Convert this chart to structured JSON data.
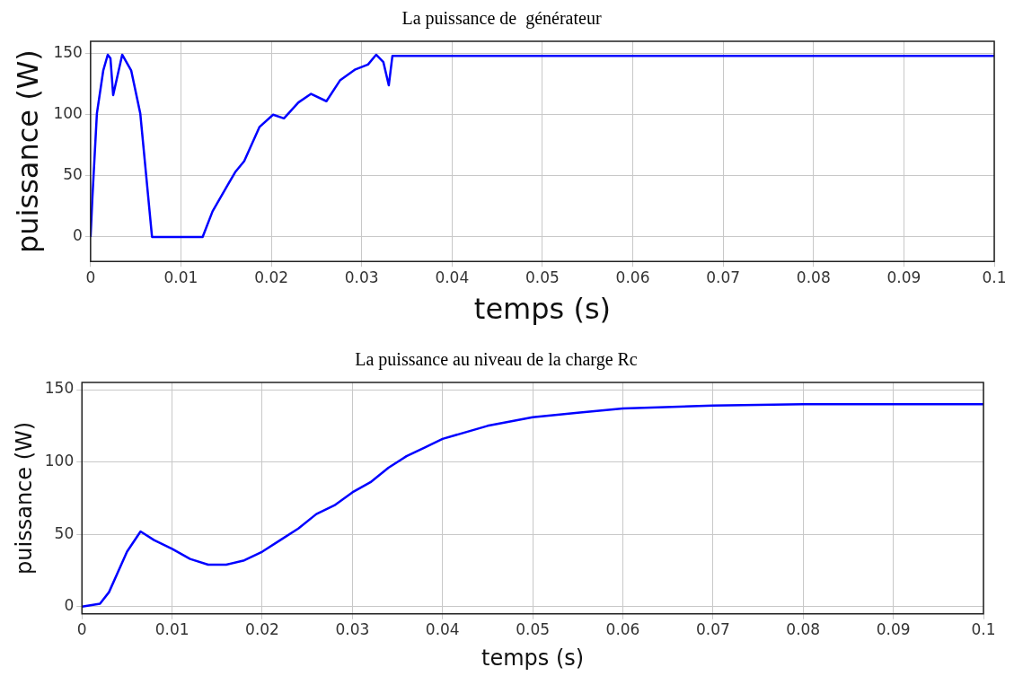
{
  "chart_data": [
    {
      "type": "line",
      "title": "La puissance de  générateur",
      "xlabel": "temps (s)",
      "ylabel": "puissance (W)",
      "grid": true,
      "legend": false,
      "marker": "none",
      "line_style": "solid",
      "xlim": [
        0,
        0.1
      ],
      "xticks": [
        0,
        0.01,
        0.02,
        0.03,
        0.04,
        0.05,
        0.06,
        0.07,
        0.08,
        0.09,
        0.1
      ],
      "ylim": [
        -20,
        160
      ],
      "yticks": [
        0,
        50,
        100,
        150
      ],
      "series": [
        {
          "color": "#0000ff",
          "x": [
            0,
            0.0002,
            0.0007,
            0.0014,
            0.0019,
            0.0022,
            0.0025,
            0.0035,
            0.0045,
            0.0055,
            0.0068,
            0.0124,
            0.0135,
            0.016,
            0.017,
            0.0187,
            0.0202,
            0.0214,
            0.023,
            0.0244,
            0.0261,
            0.0276,
            0.0293,
            0.0307,
            0.0316,
            0.0324,
            0.033,
            0.0334,
            0.04,
            0.05,
            0.06,
            0.07,
            0.08,
            0.09,
            0.1
          ],
          "values": [
            0,
            32,
            101,
            136,
            149,
            146,
            116,
            149,
            136,
            101,
            0,
            0,
            21,
            53,
            62,
            90,
            100,
            97,
            110,
            117,
            111,
            128,
            137,
            141,
            149,
            143,
            124,
            148,
            148,
            148,
            148,
            148,
            148,
            148,
            148
          ]
        }
      ]
    },
    {
      "type": "line",
      "title": "La puissance au niveau de la charge Rc",
      "xlabel": "temps (s)",
      "ylabel": "puissance (W)",
      "grid": true,
      "legend": false,
      "marker": "none",
      "line_style": "solid",
      "xlim": [
        0,
        0.1
      ],
      "xticks": [
        0,
        0.01,
        0.02,
        0.03,
        0.04,
        0.05,
        0.06,
        0.07,
        0.08,
        0.09,
        0.1
      ],
      "ylim": [
        -5,
        155
      ],
      "yticks": [
        0,
        50,
        100,
        150
      ],
      "series": [
        {
          "color": "#0000ff",
          "x": [
            0,
            0.002,
            0.003,
            0.005,
            0.0065,
            0.008,
            0.01,
            0.012,
            0.014,
            0.016,
            0.018,
            0.02,
            0.022,
            0.024,
            0.026,
            0.028,
            0.03,
            0.032,
            0.034,
            0.036,
            0.038,
            0.04,
            0.045,
            0.05,
            0.055,
            0.06,
            0.07,
            0.08,
            0.09,
            0.1
          ],
          "values": [
            0,
            2,
            10,
            38,
            52,
            46,
            40,
            33,
            29,
            29,
            32,
            38,
            46,
            54,
            64,
            70,
            79,
            86,
            96,
            104,
            110,
            116,
            125,
            131,
            134,
            137,
            139,
            140,
            140,
            140
          ]
        }
      ]
    }
  ]
}
